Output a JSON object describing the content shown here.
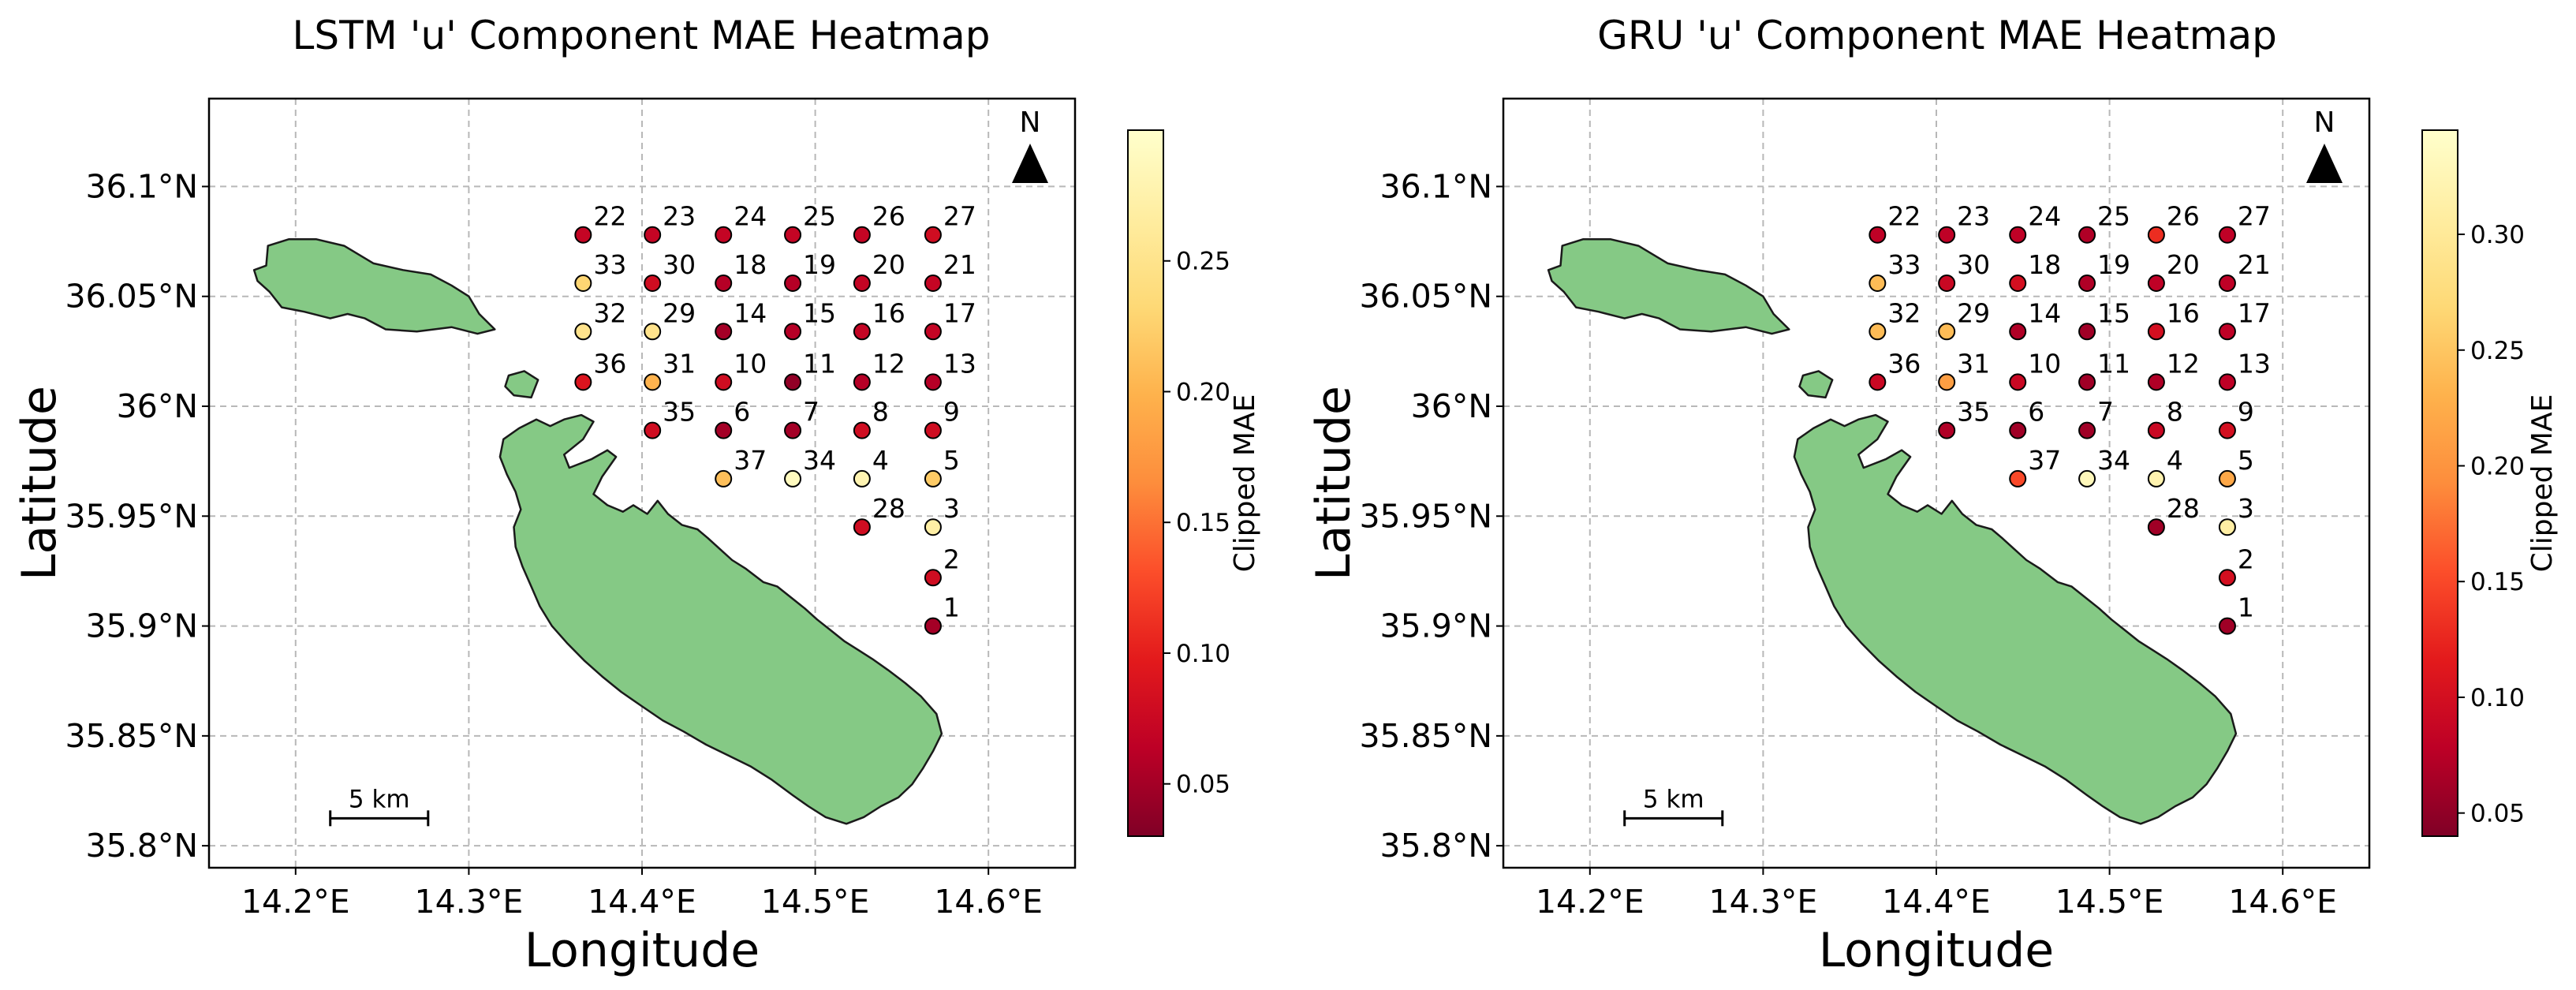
{
  "chart_data": [
    {
      "type": "map-scatter",
      "title": "LSTM 'u' Component MAE Heatmap",
      "xlabel": "Longitude",
      "ylabel": "Latitude",
      "xlim": [
        14.15,
        14.65
      ],
      "ylim": [
        35.79,
        36.14
      ],
      "xticks": [
        14.2,
        14.3,
        14.4,
        14.5,
        14.6
      ],
      "xtick_labels": [
        "14.2°E",
        "14.3°E",
        "14.4°E",
        "14.5°E",
        "14.6°E"
      ],
      "yticks": [
        35.8,
        35.85,
        35.9,
        35.95,
        36.0,
        36.05,
        36.1
      ],
      "ytick_labels": [
        "35.8°N",
        "35.85°N",
        "35.9°N",
        "35.95°N",
        "36°N",
        "36.05°N",
        "36.1°N"
      ],
      "grid": true,
      "colorbar": {
        "label": "Clipped MAE",
        "colormap": "YlOrRd_r",
        "min": 0.03,
        "max": 0.3,
        "ticks": [
          0.05,
          0.1,
          0.15,
          0.2,
          0.25
        ],
        "tick_labels": [
          "0.05",
          "0.10",
          "0.15",
          "0.20",
          "0.25"
        ]
      },
      "north_arrow": "N",
      "scale_bar": "5 km",
      "stations": [
        {
          "id": "1",
          "lon": 14.568,
          "lat": 35.9,
          "mae": 0.05
        },
        {
          "id": "2",
          "lon": 14.568,
          "lat": 35.922,
          "mae": 0.08
        },
        {
          "id": "3",
          "lon": 14.568,
          "lat": 35.945,
          "mae": 0.27
        },
        {
          "id": "4",
          "lon": 14.527,
          "lat": 35.967,
          "mae": 0.28
        },
        {
          "id": "5",
          "lon": 14.568,
          "lat": 35.967,
          "mae": 0.22
        },
        {
          "id": "6",
          "lon": 14.447,
          "lat": 35.989,
          "mae": 0.05
        },
        {
          "id": "7",
          "lon": 14.487,
          "lat": 35.989,
          "mae": 0.05
        },
        {
          "id": "8",
          "lon": 14.527,
          "lat": 35.989,
          "mae": 0.08
        },
        {
          "id": "9",
          "lon": 14.568,
          "lat": 35.989,
          "mae": 0.08
        },
        {
          "id": "10",
          "lon": 14.447,
          "lat": 36.011,
          "mae": 0.08
        },
        {
          "id": "11",
          "lon": 14.487,
          "lat": 36.011,
          "mae": 0.04
        },
        {
          "id": "12",
          "lon": 14.527,
          "lat": 36.011,
          "mae": 0.06
        },
        {
          "id": "13",
          "lon": 14.568,
          "lat": 36.011,
          "mae": 0.06
        },
        {
          "id": "14",
          "lon": 14.447,
          "lat": 36.034,
          "mae": 0.05
        },
        {
          "id": "15",
          "lon": 14.487,
          "lat": 36.034,
          "mae": 0.06
        },
        {
          "id": "16",
          "lon": 14.527,
          "lat": 36.034,
          "mae": 0.07
        },
        {
          "id": "17",
          "lon": 14.568,
          "lat": 36.034,
          "mae": 0.07
        },
        {
          "id": "18",
          "lon": 14.447,
          "lat": 36.056,
          "mae": 0.06
        },
        {
          "id": "19",
          "lon": 14.487,
          "lat": 36.056,
          "mae": 0.06
        },
        {
          "id": "20",
          "lon": 14.527,
          "lat": 36.056,
          "mae": 0.07
        },
        {
          "id": "21",
          "lon": 14.568,
          "lat": 36.056,
          "mae": 0.07
        },
        {
          "id": "22",
          "lon": 14.366,
          "lat": 36.078,
          "mae": 0.07
        },
        {
          "id": "23",
          "lon": 14.406,
          "lat": 36.078,
          "mae": 0.07
        },
        {
          "id": "24",
          "lon": 14.447,
          "lat": 36.078,
          "mae": 0.07
        },
        {
          "id": "25",
          "lon": 14.487,
          "lat": 36.078,
          "mae": 0.07
        },
        {
          "id": "26",
          "lon": 14.527,
          "lat": 36.078,
          "mae": 0.07
        },
        {
          "id": "27",
          "lon": 14.568,
          "lat": 36.078,
          "mae": 0.08
        },
        {
          "id": "28",
          "lon": 14.527,
          "lat": 35.945,
          "mae": 0.08
        },
        {
          "id": "29",
          "lon": 14.406,
          "lat": 36.034,
          "mae": 0.25
        },
        {
          "id": "30",
          "lon": 14.406,
          "lat": 36.056,
          "mae": 0.08
        },
        {
          "id": "31",
          "lon": 14.406,
          "lat": 36.011,
          "mae": 0.2
        },
        {
          "id": "32",
          "lon": 14.366,
          "lat": 36.034,
          "mae": 0.25
        },
        {
          "id": "33",
          "lon": 14.366,
          "lat": 36.056,
          "mae": 0.23
        },
        {
          "id": "34",
          "lon": 14.487,
          "lat": 35.967,
          "mae": 0.29
        },
        {
          "id": "35",
          "lon": 14.406,
          "lat": 35.989,
          "mae": 0.08
        },
        {
          "id": "36",
          "lon": 14.366,
          "lat": 36.011,
          "mae": 0.09
        },
        {
          "id": "37",
          "lon": 14.447,
          "lat": 35.967,
          "mae": 0.21
        }
      ]
    },
    {
      "type": "map-scatter",
      "title": "GRU 'u' Component MAE Heatmap",
      "xlabel": "Longitude",
      "ylabel": "Latitude",
      "xlim": [
        14.15,
        14.65
      ],
      "ylim": [
        35.79,
        36.14
      ],
      "xticks": [
        14.2,
        14.3,
        14.4,
        14.5,
        14.6
      ],
      "xtick_labels": [
        "14.2°E",
        "14.3°E",
        "14.4°E",
        "14.5°E",
        "14.6°E"
      ],
      "yticks": [
        35.8,
        35.85,
        35.9,
        35.95,
        36.0,
        36.05,
        36.1
      ],
      "ytick_labels": [
        "35.8°N",
        "35.85°N",
        "35.9°N",
        "35.95°N",
        "36°N",
        "36.05°N",
        "36.1°N"
      ],
      "grid": true,
      "colorbar": {
        "label": "Clipped MAE",
        "colormap": "YlOrRd_r",
        "min": 0.04,
        "max": 0.345,
        "ticks": [
          0.05,
          0.1,
          0.15,
          0.2,
          0.25,
          0.3
        ],
        "tick_labels": [
          "0.05",
          "0.10",
          "0.15",
          "0.20",
          "0.25",
          "0.30"
        ]
      },
      "north_arrow": "N",
      "scale_bar": "5 km",
      "stations": [
        {
          "id": "1",
          "lon": 14.568,
          "lat": 35.9,
          "mae": 0.06
        },
        {
          "id": "2",
          "lon": 14.568,
          "lat": 35.922,
          "mae": 0.1
        },
        {
          "id": "3",
          "lon": 14.568,
          "lat": 35.945,
          "mae": 0.31
        },
        {
          "id": "4",
          "lon": 14.527,
          "lat": 35.967,
          "mae": 0.32
        },
        {
          "id": "5",
          "lon": 14.568,
          "lat": 35.967,
          "mae": 0.22
        },
        {
          "id": "6",
          "lon": 14.447,
          "lat": 35.989,
          "mae": 0.06
        },
        {
          "id": "7",
          "lon": 14.487,
          "lat": 35.989,
          "mae": 0.06
        },
        {
          "id": "8",
          "lon": 14.527,
          "lat": 35.989,
          "mae": 0.09
        },
        {
          "id": "9",
          "lon": 14.568,
          "lat": 35.989,
          "mae": 0.1
        },
        {
          "id": "10",
          "lon": 14.447,
          "lat": 36.011,
          "mae": 0.09
        },
        {
          "id": "11",
          "lon": 14.487,
          "lat": 36.011,
          "mae": 0.06
        },
        {
          "id": "12",
          "lon": 14.527,
          "lat": 36.011,
          "mae": 0.07
        },
        {
          "id": "13",
          "lon": 14.568,
          "lat": 36.011,
          "mae": 0.08
        },
        {
          "id": "14",
          "lon": 14.447,
          "lat": 36.034,
          "mae": 0.07
        },
        {
          "id": "15",
          "lon": 14.487,
          "lat": 36.034,
          "mae": 0.06
        },
        {
          "id": "16",
          "lon": 14.527,
          "lat": 36.034,
          "mae": 0.1
        },
        {
          "id": "17",
          "lon": 14.568,
          "lat": 36.034,
          "mae": 0.08
        },
        {
          "id": "18",
          "lon": 14.447,
          "lat": 36.056,
          "mae": 0.1
        },
        {
          "id": "19",
          "lon": 14.487,
          "lat": 36.056,
          "mae": 0.07
        },
        {
          "id": "20",
          "lon": 14.527,
          "lat": 36.056,
          "mae": 0.08
        },
        {
          "id": "21",
          "lon": 14.568,
          "lat": 36.056,
          "mae": 0.08
        },
        {
          "id": "22",
          "lon": 14.366,
          "lat": 36.078,
          "mae": 0.08
        },
        {
          "id": "23",
          "lon": 14.406,
          "lat": 36.078,
          "mae": 0.08
        },
        {
          "id": "24",
          "lon": 14.447,
          "lat": 36.078,
          "mae": 0.08
        },
        {
          "id": "25",
          "lon": 14.487,
          "lat": 36.078,
          "mae": 0.07
        },
        {
          "id": "26",
          "lon": 14.527,
          "lat": 36.078,
          "mae": 0.13
        },
        {
          "id": "27",
          "lon": 14.568,
          "lat": 36.078,
          "mae": 0.08
        },
        {
          "id": "28",
          "lon": 14.527,
          "lat": 35.945,
          "mae": 0.06
        },
        {
          "id": "29",
          "lon": 14.406,
          "lat": 36.034,
          "mae": 0.24
        },
        {
          "id": "30",
          "lon": 14.406,
          "lat": 36.056,
          "mae": 0.09
        },
        {
          "id": "31",
          "lon": 14.406,
          "lat": 36.011,
          "mae": 0.21
        },
        {
          "id": "32",
          "lon": 14.366,
          "lat": 36.034,
          "mae": 0.24
        },
        {
          "id": "33",
          "lon": 14.366,
          "lat": 36.056,
          "mae": 0.24
        },
        {
          "id": "34",
          "lon": 14.487,
          "lat": 35.967,
          "mae": 0.33
        },
        {
          "id": "35",
          "lon": 14.406,
          "lat": 35.989,
          "mae": 0.07
        },
        {
          "id": "36",
          "lon": 14.366,
          "lat": 36.011,
          "mae": 0.09
        },
        {
          "id": "37",
          "lon": 14.447,
          "lat": 35.967,
          "mae": 0.15
        }
      ]
    }
  ]
}
